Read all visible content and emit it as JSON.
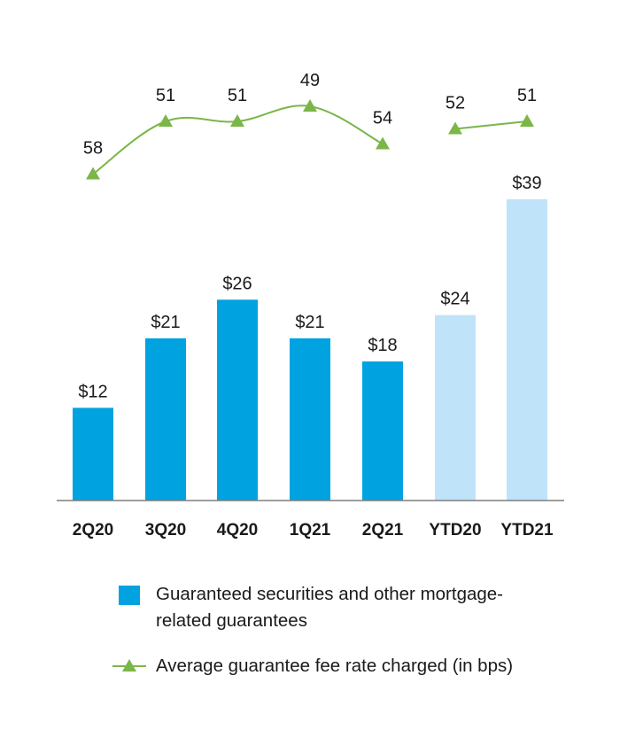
{
  "colors": {
    "quarter_bar": "#00a3e0",
    "ytd_bar": "#bfe3f9",
    "fee_line": "#7ab648",
    "axis": "#7f7f7f",
    "text": "#1a1a1a"
  },
  "chart_data": {
    "type": "bar",
    "categories": [
      "2Q20",
      "3Q20",
      "4Q20",
      "1Q21",
      "2Q21",
      "YTD20",
      "YTD21"
    ],
    "series": [
      {
        "name": "Guaranteed securities and other mortgage-related guarantees",
        "type": "bar",
        "values": [
          12,
          21,
          26,
          21,
          18,
          24,
          39
        ],
        "labels": [
          "$12",
          "$21",
          "$26",
          "$21",
          "$18",
          "$24",
          "$39"
        ],
        "ytd_categories": [
          "YTD20",
          "YTD21"
        ]
      },
      {
        "name": "Average guarantee fee rate charged (in bps)",
        "type": "line",
        "marker": "triangle",
        "values": [
          58,
          51,
          51,
          49,
          54,
          52,
          51
        ],
        "labels": [
          "58",
          "51",
          "51",
          "49",
          "54",
          "52",
          "51"
        ],
        "segments": [
          [
            0,
            4
          ],
          [
            5,
            6
          ]
        ]
      }
    ],
    "title": "",
    "xlabel": "",
    "ylabel": "",
    "grid": false,
    "legend_placement": "bottom"
  },
  "legend": {
    "bar_label": "Guaranteed securities and other mortgage-related guarantees",
    "line_label": "Average guarantee fee rate charged (in bps)"
  }
}
